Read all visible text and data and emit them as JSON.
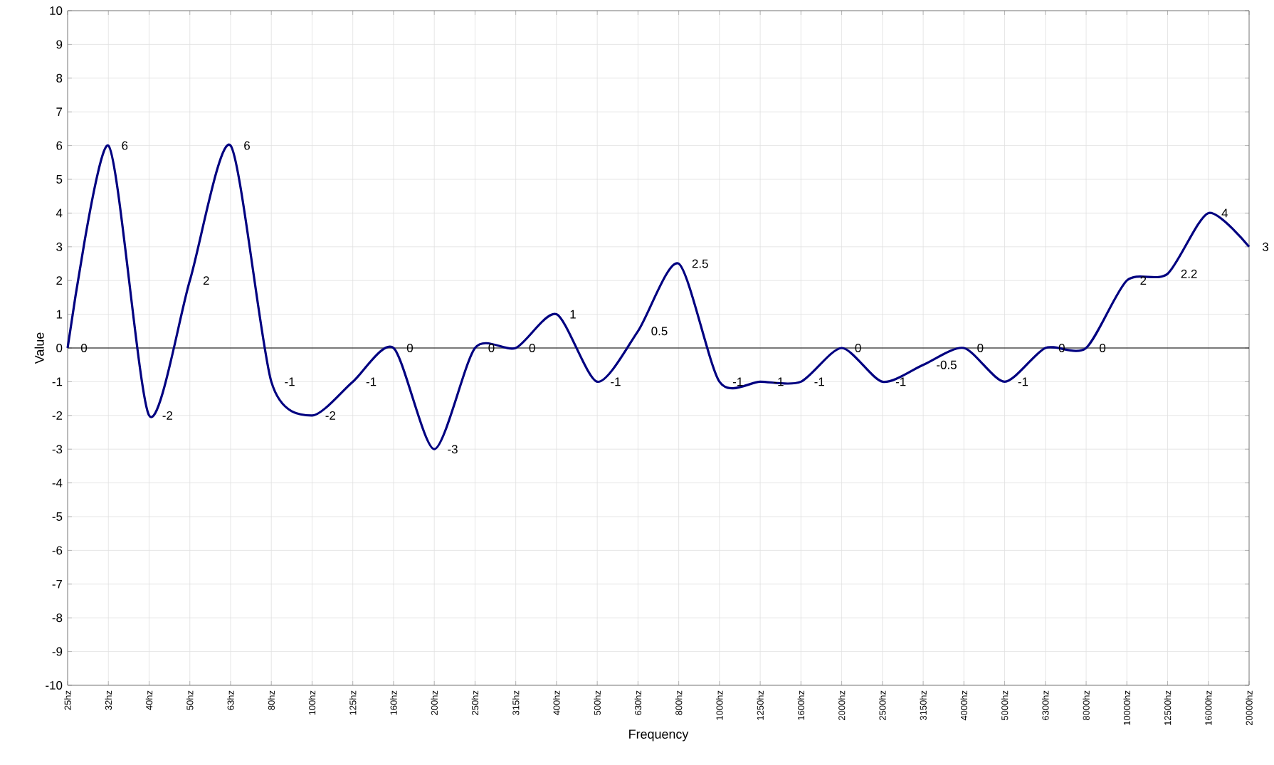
{
  "chart_data": {
    "type": "line",
    "xlabel": "Frequency",
    "ylabel": "Value",
    "categories": [
      "25hz",
      "32hz",
      "40hz",
      "50hz",
      "63hz",
      "80hz",
      "100hz",
      "125hz",
      "160hz",
      "200hz",
      "250hz",
      "315hz",
      "400hz",
      "500hz",
      "630hz",
      "800hz",
      "1000hz",
      "1250hz",
      "1600hz",
      "2000hz",
      "2500hz",
      "3150hz",
      "4000hz",
      "5000hz",
      "6300hz",
      "8000hz",
      "10000hz",
      "12500hz",
      "16000hz",
      "20000hz"
    ],
    "series": [
      {
        "color": "#000080",
        "values": [
          0,
          6,
          -2,
          2,
          6,
          -1,
          -2,
          -1,
          0,
          -3,
          0,
          0,
          1,
          -1,
          0.5,
          2.5,
          -1,
          -1,
          -1,
          0,
          -1,
          -0.5,
          0,
          -1,
          0,
          0,
          2,
          2.2,
          4,
          3
        ]
      }
    ],
    "ylim": [
      -10,
      10
    ],
    "yticks": [
      -10,
      -9,
      -8,
      -7,
      -6,
      -5,
      -4,
      -3,
      -2,
      -1,
      0,
      1,
      2,
      3,
      4,
      5,
      6,
      7,
      8,
      9,
      10
    ],
    "grid": true,
    "data_labels": true,
    "line_style": "solid",
    "ref_lines": [
      {
        "axis": "y",
        "value": 0,
        "color": "#000000"
      }
    ]
  }
}
